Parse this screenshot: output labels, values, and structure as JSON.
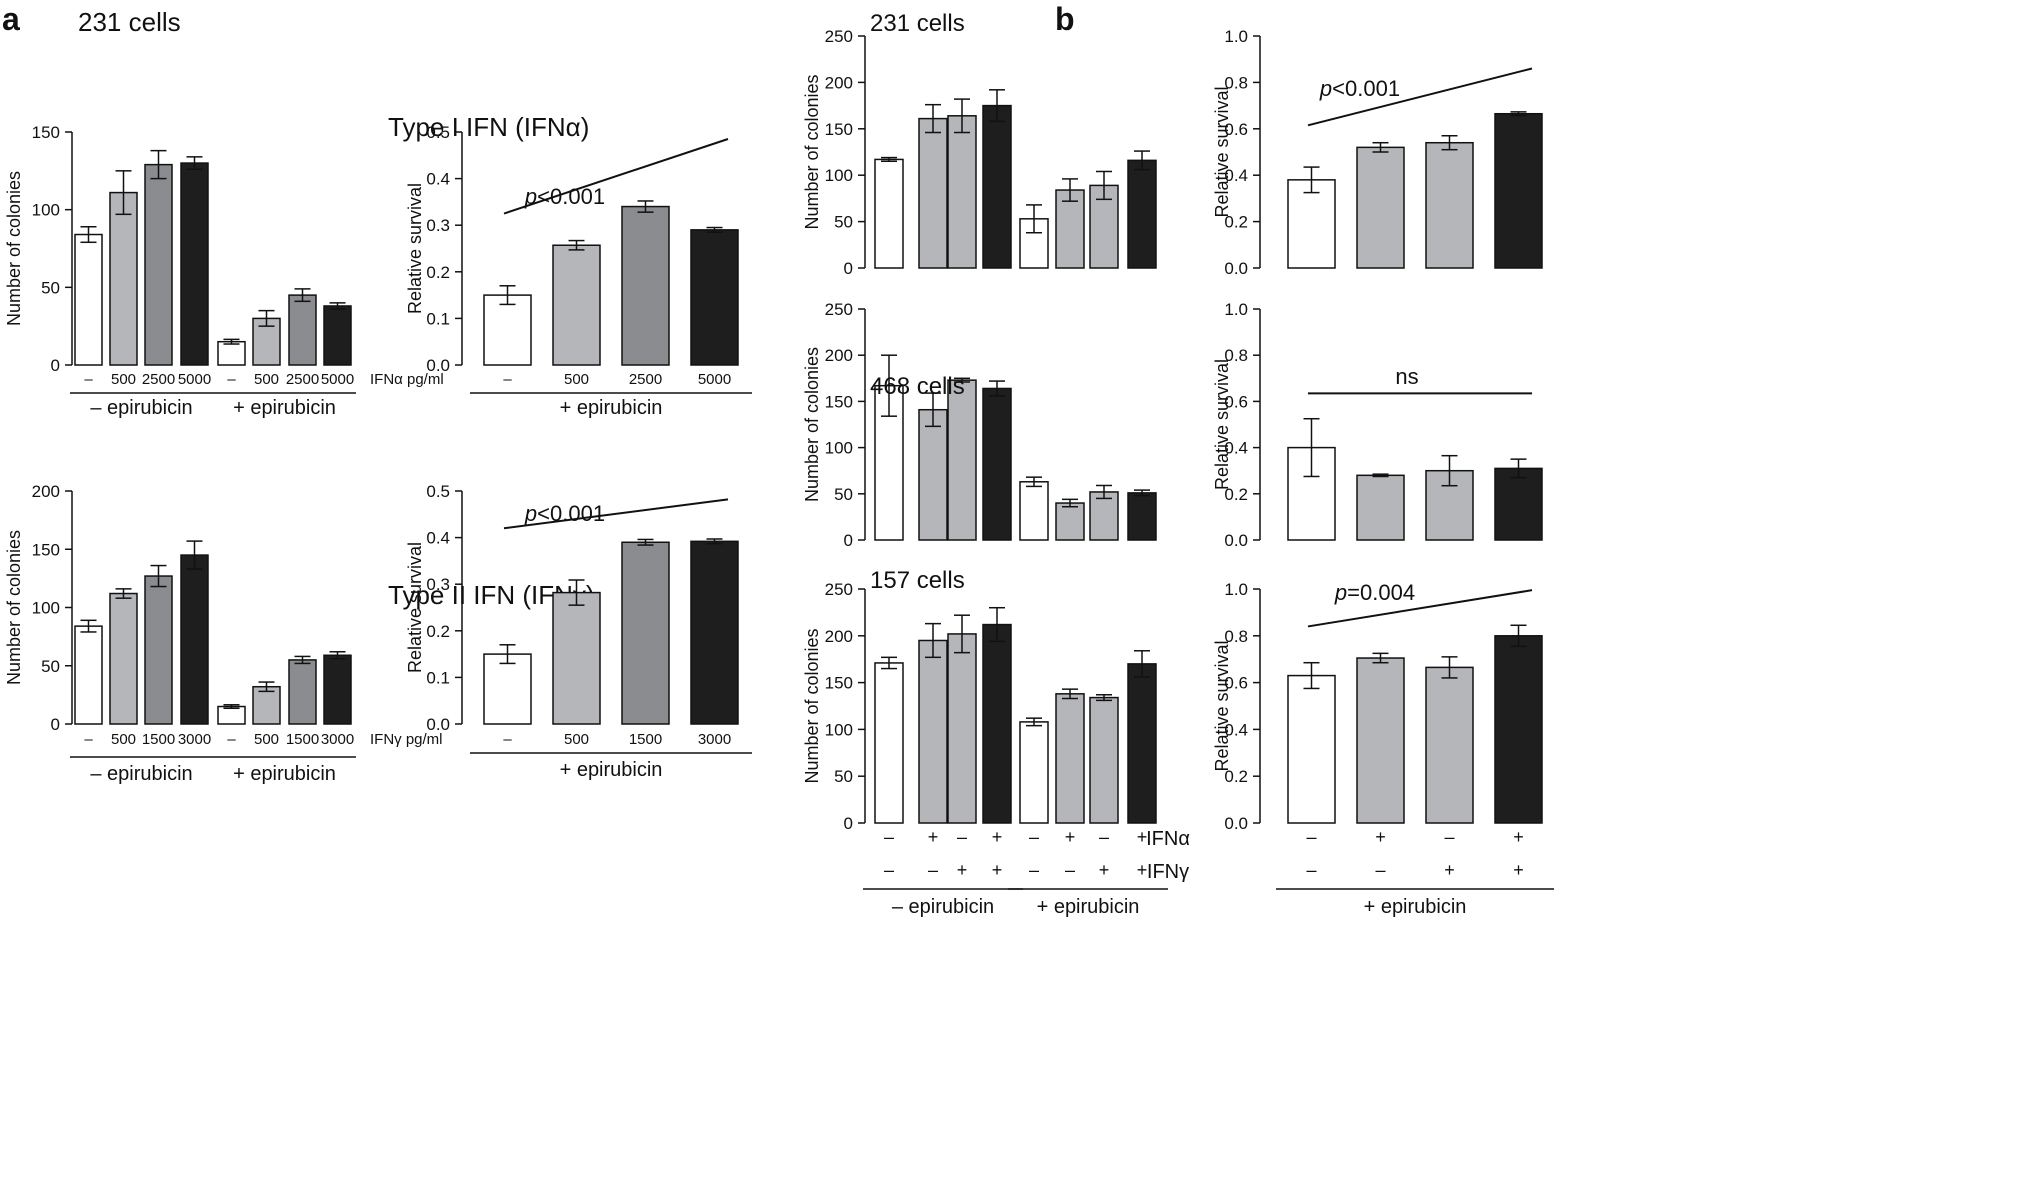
{
  "figure": {
    "panel_a": {
      "letter": "a",
      "cell_line": "231 cells",
      "type1_title": "Type I IFN (IFNα)",
      "type2_title": "Type II IFN (IFNγ)"
    },
    "panel_b": {
      "letter": "b"
    }
  },
  "colors": {
    "white": "#ffffff",
    "light_gray": "#b4b6b9",
    "mid_gray": "#8a8c8f",
    "black": "#1e1e1e",
    "axis": "#111111"
  },
  "chart_data": [
    {
      "id": "a_ifna_colonies",
      "type": "bar",
      "ylabel": "Number of colonies",
      "ylim": [
        0,
        150
      ],
      "yticks": [
        0,
        50,
        100,
        150
      ],
      "categories": [
        "–",
        "500",
        "2500",
        "5000",
        "–",
        "500",
        "2500",
        "5000"
      ],
      "values": [
        84,
        111,
        129,
        130,
        15,
        30,
        45,
        38
      ],
      "errors": [
        5,
        14,
        9,
        4,
        1.5,
        5,
        4,
        2
      ],
      "colors": [
        "white",
        "light_gray",
        "mid_gray",
        "black",
        "white",
        "light_gray",
        "mid_gray",
        "black"
      ],
      "unit_label": "IFNα pg/ml",
      "groups": [
        {
          "label": "– epirubicin",
          "from": 0,
          "to": 3
        },
        {
          "label": "+ epirubicin",
          "from": 4,
          "to": 7
        }
      ]
    },
    {
      "id": "a_ifna_survival",
      "type": "bar",
      "ylabel": "Relative survival",
      "ylim": [
        0,
        0.5
      ],
      "yticks": [
        "0.0",
        "0.1",
        "0.2",
        "0.3",
        "0.4",
        "0.5"
      ],
      "categories": [
        "–",
        "500",
        "2500",
        "5000"
      ],
      "values": [
        0.15,
        0.257,
        0.34,
        0.29
      ],
      "errors": [
        0.02,
        0.01,
        0.012,
        0.005
      ],
      "colors": [
        "white",
        "light_gray",
        "mid_gray",
        "black"
      ],
      "groups": [
        {
          "label": "+ epirubicin",
          "from": 0,
          "to": 3
        }
      ],
      "annotation": {
        "prefix": "p",
        "text": "<0.001",
        "line": [
          0.325,
          0.485
        ]
      }
    },
    {
      "id": "a_ifng_colonies",
      "type": "bar",
      "ylabel": "Number of colonies",
      "ylim": [
        0,
        200
      ],
      "yticks": [
        0,
        50,
        100,
        150,
        200
      ],
      "categories": [
        "–",
        "500",
        "1500",
        "3000",
        "–",
        "500",
        "1500",
        "3000"
      ],
      "values": [
        84,
        112,
        127,
        145,
        15,
        32,
        55,
        59
      ],
      "errors": [
        5,
        4,
        9,
        12,
        1.5,
        4,
        3,
        3
      ],
      "colors": [
        "white",
        "light_gray",
        "mid_gray",
        "black",
        "white",
        "light_gray",
        "mid_gray",
        "black"
      ],
      "unit_label": "IFNγ pg/ml",
      "groups": [
        {
          "label": "– epirubicin",
          "from": 0,
          "to": 3
        },
        {
          "label": "+ epirubicin",
          "from": 4,
          "to": 7
        }
      ]
    },
    {
      "id": "a_ifng_survival",
      "type": "bar",
      "ylabel": "Relative survival",
      "ylim": [
        0,
        0.5
      ],
      "yticks": [
        "0.0",
        "0.1",
        "0.2",
        "0.3",
        "0.4",
        "0.5"
      ],
      "categories": [
        "–",
        "500",
        "1500",
        "3000"
      ],
      "values": [
        0.15,
        0.282,
        0.39,
        0.392
      ],
      "errors": [
        0.02,
        0.027,
        0.006,
        0.005
      ],
      "colors": [
        "white",
        "light_gray",
        "mid_gray",
        "black"
      ],
      "groups": [
        {
          "label": "+ epirubicin",
          "from": 0,
          "to": 3
        }
      ],
      "annotation": {
        "prefix": "p",
        "text": "<0.001",
        "line": [
          0.42,
          0.482
        ]
      }
    },
    {
      "id": "b_231_colonies",
      "type": "bar",
      "cell_label": "231 cells",
      "ylabel": "Number of colonies",
      "ylim": [
        0,
        250
      ],
      "yticks": [
        0,
        50,
        100,
        150,
        200,
        250
      ],
      "values": [
        117,
        161,
        164,
        175,
        53,
        84,
        89,
        116
      ],
      "errors": [
        2,
        15,
        18,
        17,
        15,
        12,
        15,
        10
      ],
      "colors": [
        "white",
        "light_gray",
        "light_gray",
        "black",
        "white",
        "light_gray",
        "light_gray",
        "black"
      ]
    },
    {
      "id": "b_231_survival",
      "type": "bar",
      "ylabel": "Relative survival",
      "ylim": [
        0,
        1.0
      ],
      "yticks": [
        "0.0",
        "0.2",
        "0.4",
        "0.6",
        "0.8",
        "1.0"
      ],
      "values": [
        0.38,
        0.52,
        0.54,
        0.665
      ],
      "errors": [
        0.055,
        0.02,
        0.03,
        0.008
      ],
      "colors": [
        "white",
        "light_gray",
        "light_gray",
        "black"
      ],
      "annotation": {
        "prefix": "p",
        "text": "<0.001",
        "line": [
          0.615,
          0.86
        ]
      }
    },
    {
      "id": "b_468_colonies",
      "type": "bar",
      "cell_label": "468 cells",
      "ylabel": "Number of colonies",
      "ylim": [
        0,
        250
      ],
      "yticks": [
        0,
        50,
        100,
        150,
        200,
        250
      ],
      "values": [
        167,
        141,
        173,
        164,
        63,
        40,
        52,
        51
      ],
      "errors": [
        33,
        18,
        2,
        8,
        5,
        4,
        7,
        3
      ],
      "colors": [
        "white",
        "light_gray",
        "light_gray",
        "black",
        "white",
        "light_gray",
        "light_gray",
        "black"
      ]
    },
    {
      "id": "b_468_survival",
      "type": "bar",
      "ylabel": "Relative survival",
      "ylim": [
        0,
        1.0
      ],
      "yticks": [
        "0.0",
        "0.2",
        "0.4",
        "0.6",
        "0.8",
        "1.0"
      ],
      "values": [
        0.4,
        0.28,
        0.3,
        0.31
      ],
      "errors": [
        0.125,
        0.005,
        0.065,
        0.04
      ],
      "colors": [
        "white",
        "light_gray",
        "light_gray",
        "black"
      ],
      "annotation": {
        "prefix": "",
        "text": "ns",
        "line": [
          0.635,
          0.635
        ]
      }
    },
    {
      "id": "b_157_colonies",
      "type": "bar",
      "cell_label": "157 cells",
      "ylabel": "Number of colonies",
      "ylim": [
        0,
        250
      ],
      "yticks": [
        0,
        50,
        100,
        150,
        200,
        250
      ],
      "values": [
        171,
        195,
        202,
        212,
        108,
        138,
        134,
        170
      ],
      "errors": [
        6,
        18,
        20,
        18,
        4,
        5,
        3,
        14
      ],
      "colors": [
        "white",
        "light_gray",
        "light_gray",
        "black",
        "white",
        "light_gray",
        "light_gray",
        "black"
      ],
      "treat_row1": [
        "–",
        "+",
        "–",
        "+",
        "–",
        "+",
        "–",
        "+"
      ],
      "treat_row2": [
        "–",
        "–",
        "+",
        "+",
        "–",
        "–",
        "+",
        "+"
      ],
      "groups": [
        {
          "label": "– epirubicin",
          "from": 0,
          "to": 3
        },
        {
          "label": "+ epirubicin",
          "from": 4,
          "to": 7
        }
      ]
    },
    {
      "id": "b_157_survival",
      "type": "bar",
      "ylabel": "Relative survival",
      "ylim": [
        0,
        1.0
      ],
      "yticks": [
        "0.0",
        "0.2",
        "0.4",
        "0.6",
        "0.8",
        "1.0"
      ],
      "values": [
        0.63,
        0.705,
        0.665,
        0.8
      ],
      "errors": [
        0.055,
        0.02,
        0.045,
        0.045
      ],
      "colors": [
        "white",
        "light_gray",
        "light_gray",
        "black"
      ],
      "annotation": {
        "prefix": "p",
        "text": "=0.004",
        "line": [
          0.84,
          0.995
        ]
      },
      "row_labels": [
        "IFNα",
        "IFNγ"
      ],
      "treat_row1": [
        "–",
        "+",
        "–",
        "+"
      ],
      "treat_row2": [
        "–",
        "–",
        "+",
        "+"
      ],
      "groups": [
        {
          "label": "+ epirubicin",
          "from": 0,
          "to": 3
        }
      ]
    }
  ]
}
